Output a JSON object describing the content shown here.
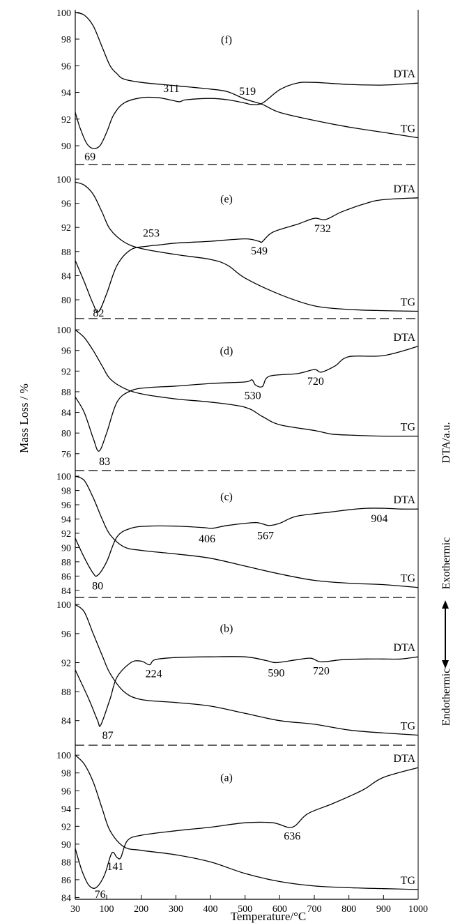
{
  "chart_data": {
    "type": "line",
    "xlabel": "Temperature/°C",
    "ylabel": "Mass Loss / %",
    "right_label": "DTA/a.u.",
    "exo_label": "Exothermic",
    "endo_label": "Endothermic",
    "xlim": [
      30,
      1000
    ],
    "xticks": [
      30,
      100,
      200,
      300,
      400,
      500,
      600,
      700,
      800,
      900,
      1000
    ],
    "dta_name": "DTA",
    "tg_name": "TG",
    "panels": [
      {
        "label": "(f)",
        "ylim": [
          88.8,
          100.2
        ],
        "yticks": [
          90,
          92,
          94,
          96,
          98,
          100
        ],
        "tg": [
          [
            30,
            100
          ],
          [
            50,
            99.8
          ],
          [
            70,
            99
          ],
          [
            90,
            97.4
          ],
          [
            110,
            96
          ],
          [
            130,
            95.4
          ],
          [
            150,
            95
          ],
          [
            200,
            94.75
          ],
          [
            300,
            94.5
          ],
          [
            400,
            94.25
          ],
          [
            450,
            94.05
          ],
          [
            500,
            93.5
          ],
          [
            550,
            93.1
          ],
          [
            600,
            92.5
          ],
          [
            700,
            91.9
          ],
          [
            800,
            91.4
          ],
          [
            900,
            91
          ],
          [
            1000,
            90.6
          ]
        ],
        "dta": [
          [
            30,
            92.5
          ],
          [
            40,
            91.4
          ],
          [
            55,
            90.2
          ],
          [
            69,
            89.8
          ],
          [
            85,
            90
          ],
          [
            100,
            91
          ],
          [
            120,
            92.3
          ],
          [
            150,
            93.2
          ],
          [
            200,
            93.6
          ],
          [
            250,
            93.6
          ],
          [
            290,
            93.4
          ],
          [
            311,
            93.3
          ],
          [
            330,
            93.45
          ],
          [
            400,
            93.55
          ],
          [
            450,
            93.45
          ],
          [
            500,
            93.2
          ],
          [
            519,
            93.1
          ],
          [
            550,
            93.2
          ],
          [
            600,
            94.2
          ],
          [
            650,
            94.7
          ],
          [
            700,
            94.75
          ],
          [
            800,
            94.6
          ],
          [
            900,
            94.55
          ],
          [
            1000,
            94.7
          ]
        ],
        "annotations": [
          {
            "text": "69",
            "x": 69
          },
          {
            "text": "311",
            "x": 311
          },
          {
            "text": "519",
            "x": 519
          }
        ]
      },
      {
        "label": "(e)",
        "ylim": [
          77,
          101.5
        ],
        "yticks": [
          80,
          84,
          88,
          92,
          96,
          100
        ],
        "tg": [
          [
            30,
            99.5
          ],
          [
            50,
            99
          ],
          [
            70,
            97.5
          ],
          [
            90,
            94.5
          ],
          [
            110,
            91.7
          ],
          [
            150,
            89.6
          ],
          [
            200,
            88.5
          ],
          [
            300,
            87.5
          ],
          [
            400,
            86.7
          ],
          [
            450,
            85.7
          ],
          [
            500,
            83.6
          ],
          [
            600,
            80.9
          ],
          [
            700,
            79
          ],
          [
            800,
            78.4
          ],
          [
            900,
            78.2
          ],
          [
            1000,
            78.1
          ]
        ],
        "dta": [
          [
            30,
            86.5
          ],
          [
            50,
            83
          ],
          [
            70,
            79.3
          ],
          [
            82,
            78
          ],
          [
            100,
            81
          ],
          [
            130,
            85.7
          ],
          [
            170,
            88.3
          ],
          [
            220,
            88.9
          ],
          [
            253,
            89.1
          ],
          [
            300,
            89.4
          ],
          [
            400,
            89.7
          ],
          [
            500,
            90.1
          ],
          [
            540,
            89.7
          ],
          [
            549,
            89.6
          ],
          [
            580,
            91.2
          ],
          [
            650,
            92.5
          ],
          [
            700,
            93.5
          ],
          [
            732,
            93.3
          ],
          [
            780,
            94.6
          ],
          [
            850,
            96
          ],
          [
            900,
            96.6
          ],
          [
            1000,
            96.9
          ]
        ],
        "annotations": [
          {
            "text": "253",
            "x": 253
          },
          {
            "text": "549",
            "x": 549
          },
          {
            "text": "732",
            "x": 732
          },
          {
            "text": "82",
            "x": 82
          }
        ]
      },
      {
        "label": "(d)",
        "ylim": [
          73,
          101.5
        ],
        "yticks": [
          76,
          80,
          84,
          88,
          92,
          96,
          100
        ],
        "tg": [
          [
            30,
            100
          ],
          [
            50,
            98.5
          ],
          [
            70,
            96
          ],
          [
            90,
            93
          ],
          [
            110,
            90.5
          ],
          [
            150,
            88.7
          ],
          [
            200,
            87.6
          ],
          [
            300,
            86.6
          ],
          [
            400,
            86
          ],
          [
            500,
            85
          ],
          [
            550,
            83.2
          ],
          [
            600,
            81.6
          ],
          [
            700,
            80.5
          ],
          [
            750,
            79.8
          ],
          [
            800,
            79.6
          ],
          [
            900,
            79.4
          ],
          [
            1000,
            79.4
          ]
        ],
        "dta": [
          [
            30,
            87
          ],
          [
            50,
            84
          ],
          [
            70,
            79
          ],
          [
            83,
            76.5
          ],
          [
            100,
            80
          ],
          [
            130,
            86
          ],
          [
            170,
            88.2
          ],
          [
            220,
            88.8
          ],
          [
            300,
            89.1
          ],
          [
            400,
            89.6
          ],
          [
            500,
            89.9
          ],
          [
            520,
            90.3
          ],
          [
            530,
            89.3
          ],
          [
            550,
            89
          ],
          [
            570,
            91
          ],
          [
            650,
            91.5
          ],
          [
            700,
            92.3
          ],
          [
            720,
            91.8
          ],
          [
            760,
            93
          ],
          [
            800,
            94.8
          ],
          [
            900,
            95
          ],
          [
            1000,
            96.8
          ]
        ],
        "annotations": [
          {
            "text": "530",
            "x": 530
          },
          {
            "text": "720",
            "x": 720
          },
          {
            "text": "83",
            "x": 83
          }
        ]
      },
      {
        "label": "(c)",
        "ylim": [
          83.2,
          100.4
        ],
        "yticks": [
          84,
          86,
          88,
          90,
          92,
          94,
          96,
          98,
          100
        ],
        "tg": [
          [
            30,
            100
          ],
          [
            50,
            99.4
          ],
          [
            70,
            97
          ],
          [
            90,
            94
          ],
          [
            110,
            91.8
          ],
          [
            150,
            90.1
          ],
          [
            200,
            89.6
          ],
          [
            300,
            89.1
          ],
          [
            400,
            88.5
          ],
          [
            500,
            87.4
          ],
          [
            600,
            86.3
          ],
          [
            700,
            85.4
          ],
          [
            800,
            85
          ],
          [
            900,
            84.8
          ],
          [
            1000,
            84.4
          ]
        ],
        "dta": [
          [
            30,
            91.3
          ],
          [
            50,
            88.6
          ],
          [
            70,
            86.4
          ],
          [
            80,
            86.1
          ],
          [
            100,
            88
          ],
          [
            130,
            91.5
          ],
          [
            170,
            92.7
          ],
          [
            220,
            93
          ],
          [
            300,
            93
          ],
          [
            380,
            92.8
          ],
          [
            406,
            92.7
          ],
          [
            450,
            93.1
          ],
          [
            530,
            93.5
          ],
          [
            567,
            93.1
          ],
          [
            600,
            93.4
          ],
          [
            650,
            94.4
          ],
          [
            750,
            95
          ],
          [
            800,
            95.3
          ],
          [
            850,
            95.5
          ],
          [
            904,
            95.5
          ],
          [
            950,
            95.4
          ],
          [
            1000,
            95.4
          ]
        ],
        "annotations": [
          {
            "text": "406",
            "x": 406
          },
          {
            "text": "567",
            "x": 567
          },
          {
            "text": "904",
            "x": 904
          },
          {
            "text": "80",
            "x": 80
          }
        ]
      },
      {
        "label": "(b)",
        "ylim": [
          80.8,
          100.6
        ],
        "yticks": [
          84,
          88,
          92,
          96,
          100
        ],
        "tg": [
          [
            30,
            100
          ],
          [
            50,
            99
          ],
          [
            70,
            96
          ],
          [
            90,
            93
          ],
          [
            110,
            90.5
          ],
          [
            150,
            88
          ],
          [
            200,
            86.9
          ],
          [
            300,
            86.5
          ],
          [
            400,
            86
          ],
          [
            500,
            85
          ],
          [
            600,
            84
          ],
          [
            700,
            83.5
          ],
          [
            800,
            82.7
          ],
          [
            900,
            82.3
          ],
          [
            1000,
            82
          ]
        ],
        "dta": [
          [
            30,
            91
          ],
          [
            60,
            87
          ],
          [
            80,
            84
          ],
          [
            87,
            83.4
          ],
          [
            110,
            87
          ],
          [
            130,
            90
          ],
          [
            170,
            92
          ],
          [
            200,
            92.2
          ],
          [
            224,
            91.7
          ],
          [
            240,
            92.4
          ],
          [
            300,
            92.7
          ],
          [
            400,
            92.8
          ],
          [
            500,
            92.8
          ],
          [
            560,
            92.3
          ],
          [
            590,
            92
          ],
          [
            650,
            92.4
          ],
          [
            690,
            92.6
          ],
          [
            720,
            92.1
          ],
          [
            780,
            92.4
          ],
          [
            850,
            92.5
          ],
          [
            900,
            92.5
          ],
          [
            950,
            92.5
          ],
          [
            1000,
            92.8
          ]
        ],
        "annotations": [
          {
            "text": "224",
            "x": 224
          },
          {
            "text": "590",
            "x": 590
          },
          {
            "text": "720",
            "x": 720
          },
          {
            "text": "87",
            "x": 87
          }
        ]
      },
      {
        "label": "(a)",
        "ylim": [
          83.8,
          100.8
        ],
        "yticks": [
          84,
          86,
          88,
          90,
          92,
          94,
          96,
          98,
          100
        ],
        "tg": [
          [
            30,
            100
          ],
          [
            50,
            99
          ],
          [
            70,
            97
          ],
          [
            90,
            94
          ],
          [
            110,
            91.5
          ],
          [
            150,
            89.7
          ],
          [
            200,
            89.3
          ],
          [
            300,
            88.8
          ],
          [
            400,
            88
          ],
          [
            500,
            86.7
          ],
          [
            600,
            85.8
          ],
          [
            700,
            85.3
          ],
          [
            800,
            85.1
          ],
          [
            900,
            85
          ],
          [
            1000,
            84.9
          ]
        ],
        "dta": [
          [
            30,
            89.5
          ],
          [
            45,
            87
          ],
          [
            60,
            85.4
          ],
          [
            76,
            85.1
          ],
          [
            95,
            86.5
          ],
          [
            115,
            89
          ],
          [
            130,
            88.5
          ],
          [
            141,
            88.5
          ],
          [
            160,
            90.4
          ],
          [
            200,
            91
          ],
          [
            300,
            91.5
          ],
          [
            400,
            91.9
          ],
          [
            500,
            92.4
          ],
          [
            580,
            92.4
          ],
          [
            636,
            91.9
          ],
          [
            680,
            93.4
          ],
          [
            750,
            94.5
          ],
          [
            820,
            95.7
          ],
          [
            850,
            96.3
          ],
          [
            900,
            97.5
          ],
          [
            1000,
            98.6
          ]
        ],
        "annotations": [
          {
            "text": "636",
            "x": 636
          },
          {
            "text": "141",
            "x": 141
          },
          {
            "text": "76",
            "x": 76
          }
        ]
      }
    ]
  }
}
